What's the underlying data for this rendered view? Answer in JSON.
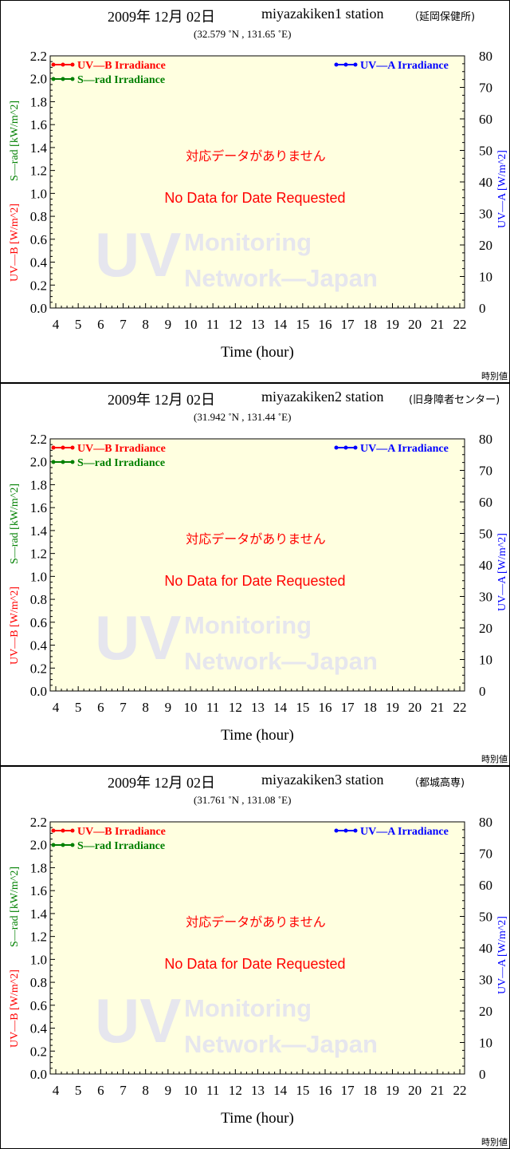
{
  "panels": [
    {
      "date": "2009年 12月 02日",
      "station": "miyazakiken1 station",
      "site": "（延岡保健所)",
      "coords": "(32.579 ˚N , 131.65 ˚E)"
    },
    {
      "date": "2009年 12月 02日",
      "station": "miyazakiken2 station",
      "site": "(旧身障者センター)",
      "coords": "(31.942 ˚N , 131.44 ˚E)"
    },
    {
      "date": "2009年 12月 02日",
      "station": "miyazakiken3 station",
      "site": "（都城高専)",
      "coords": "(31.761 ˚N , 131.08 ˚E)"
    }
  ],
  "footer_label": "時別値",
  "no_data_jp": "対応データがありません",
  "no_data_en": "No Data for Date Requested",
  "watermark": {
    "big": "UV",
    "line1": "Monitoring",
    "line2": "Network—Japan"
  },
  "chart_data": {
    "type": "line",
    "xlabel": "Time (hour)",
    "x_ticks": [
      4,
      5,
      6,
      7,
      8,
      9,
      10,
      11,
      12,
      13,
      14,
      15,
      16,
      17,
      18,
      19,
      20,
      21,
      22
    ],
    "xlim": [
      4,
      22
    ],
    "ylabel_left_1": "UV—B [W/m^2]",
    "ylabel_left_2": "S—rad [kW/m^2]",
    "ylim_left": [
      0,
      2.2
    ],
    "y_ticks_left": [
      "0.0",
      "0.2",
      "0.4",
      "0.6",
      "0.8",
      "1.0",
      "1.2",
      "1.4",
      "1.6",
      "1.8",
      "2.0",
      "2.2"
    ],
    "ylabel_right": "UV—A [W/m^2]",
    "ylim_right": [
      0,
      80
    ],
    "y_ticks_right": [
      "0",
      "10",
      "20",
      "30",
      "40",
      "50",
      "60",
      "70",
      "80"
    ],
    "grid": false,
    "series": [
      {
        "name": "UV—B Irradiance",
        "color": "#ff0000",
        "values": []
      },
      {
        "name": "S—rad Irradiance",
        "color": "#008000",
        "values": []
      },
      {
        "name": "UV—A Irradiance",
        "color": "#0000ff",
        "values": []
      }
    ],
    "plot_bg": "#ffffe0"
  }
}
